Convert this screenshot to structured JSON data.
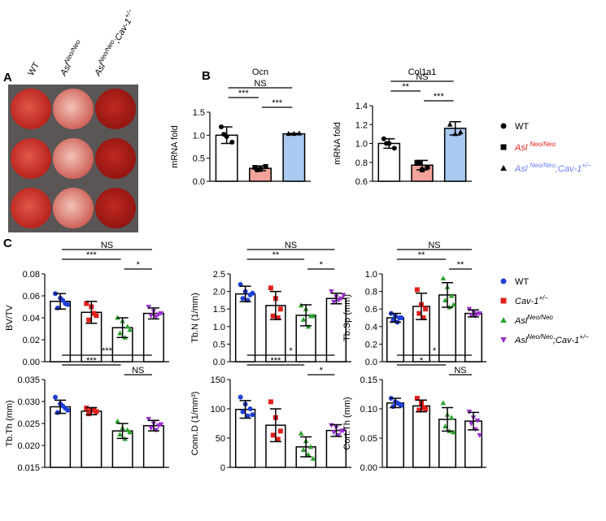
{
  "panel_labels": [
    "A",
    "B",
    "C"
  ],
  "panel_a": {
    "columns": [
      [
        {
          "text": "WT"
        }
      ],
      [
        {
          "text": "Asl"
        },
        {
          "text": "Neo/Neo",
          "sup": true
        }
      ],
      [
        {
          "text": "Asl"
        },
        {
          "text": "Neo/Neo",
          "sup": true
        },
        {
          "text": ";Cav-1"
        },
        {
          "text": "+/−",
          "sup": true
        }
      ]
    ]
  },
  "legend_b": [
    {
      "marker": "circle",
      "color": "#000000",
      "text_color": "#000000",
      "italic": false,
      "name": [
        {
          "text": "WT"
        }
      ]
    },
    {
      "marker": "square",
      "color": "#000000",
      "text_color": "#e8231e",
      "italic": true,
      "name": [
        {
          "text": "Asl "
        },
        {
          "text": "Neo/Neo",
          "sup": true
        }
      ]
    },
    {
      "marker": "triangle",
      "color": "#000000",
      "text_color": "#6a7df0",
      "italic": true,
      "name": [
        {
          "text": "Asl "
        },
        {
          "text": "Neo/Neo",
          "sup": true
        },
        {
          "text": ";Cav-1"
        },
        {
          "text": "+/−",
          "sup": true
        }
      ]
    }
  ],
  "legend_c": [
    {
      "marker": "circle",
      "color": "#1f3fd6",
      "text_color": "#000000",
      "italic": false,
      "name": [
        {
          "text": "WT"
        }
      ]
    },
    {
      "marker": "square",
      "color": "#e0201b",
      "text_color": "#000000",
      "italic": true,
      "name": [
        {
          "text": "Cav-1"
        },
        {
          "text": "+/−",
          "sup": true
        }
      ]
    },
    {
      "marker": "triangle",
      "color": "#2ca02c",
      "text_color": "#000000",
      "italic": true,
      "name": [
        {
          "text": "Asl"
        },
        {
          "text": "Neo/Neo",
          "sup": true
        }
      ]
    },
    {
      "marker": "triangle-down",
      "color": "#9b30d0",
      "text_color": "#000000",
      "italic": true,
      "name": [
        {
          "text": "Asl"
        },
        {
          "text": "Neo/Neo",
          "sup": true
        },
        {
          "text": ";Cav-1"
        },
        {
          "text": "+/−",
          "sup": true
        }
      ]
    }
  ],
  "chart_data": [
    {
      "type": "bar",
      "title": "Ocn",
      "ylabel": "mRNA fold",
      "ylim": [
        0,
        1.5
      ],
      "yticks": [
        {
          "value": 0,
          "label": "0.0"
        },
        0.5,
        {
          "value": 1,
          "label": "1.0"
        },
        1.5
      ],
      "series": [
        {
          "color": "#ffffff",
          "point_color": "#000000",
          "marker": "circle",
          "values": [
            1.0
          ],
          "errors": [
            0.18
          ],
          "points": [
            1.18,
            0.97,
            0.85,
            1.02
          ]
        },
        {
          "color": "#f4a39a",
          "point_color": "#000000",
          "marker": "square",
          "values": [
            0.28
          ],
          "errors": [
            0.05
          ],
          "points": [
            0.3,
            0.26,
            0.32,
            0.25
          ]
        },
        {
          "color": "#a9c9f0",
          "point_color": "#000000",
          "marker": "triangle",
          "values": [
            1.03
          ],
          "errors": [
            0.01
          ],
          "points": [
            1.03,
            1.03,
            1.04
          ]
        }
      ],
      "comparisons": [
        {
          "groups": [
            0,
            2
          ],
          "label": "NS"
        },
        {
          "groups": [
            0,
            1
          ],
          "label": "***"
        },
        {
          "groups": [
            1,
            2
          ],
          "label": "***"
        }
      ]
    },
    {
      "type": "bar",
      "title": "Col1a1",
      "ylabel": "mRNA fold",
      "ylim": [
        0.6,
        1.4
      ],
      "yticks": [
        0.6,
        0.8,
        {
          "value": 1,
          "label": "1.0"
        },
        1.2,
        1.4
      ],
      "series": [
        {
          "color": "#ffffff",
          "point_color": "#000000",
          "marker": "circle",
          "values": [
            1.0
          ],
          "errors": [
            0.05
          ],
          "points": [
            1.05,
            1.0,
            0.95,
            1.0
          ]
        },
        {
          "color": "#f4a39a",
          "point_color": "#000000",
          "marker": "square",
          "values": [
            0.77
          ],
          "errors": [
            0.05
          ],
          "points": [
            0.8,
            0.72,
            0.75,
            0.8
          ]
        },
        {
          "color": "#a9c9f0",
          "point_color": "#000000",
          "marker": "triangle",
          "values": [
            1.16
          ],
          "errors": [
            0.07
          ],
          "points": [
            1.2,
            1.1,
            1.12
          ]
        }
      ],
      "comparisons": [
        {
          "groups": [
            0,
            2
          ],
          "label": "NS"
        },
        {
          "groups": [
            0,
            1
          ],
          "label": "**"
        },
        {
          "groups": [
            1,
            2
          ],
          "label": "***"
        }
      ]
    },
    {
      "type": "bar",
      "ylabel": "BV/TV",
      "ylim": [
        0,
        0.08
      ],
      "yticks": [
        {
          "value": 0,
          "label": "0.00"
        },
        {
          "value": 0.02,
          "label": "0.02"
        },
        {
          "value": 0.04,
          "label": "0.04"
        },
        {
          "value": 0.06,
          "label": "0.06"
        },
        {
          "value": 0.08,
          "label": "0.08"
        }
      ],
      "series": [
        {
          "color": "#ffffff",
          "point_color": "#1f3fd6",
          "marker": "circle",
          "values": [
            0.055
          ],
          "errors": [
            0.007
          ],
          "points": [
            0.062,
            0.058,
            0.053,
            0.049,
            0.056,
            0.052
          ]
        },
        {
          "color": "#ffffff",
          "point_color": "#e0201b",
          "marker": "square",
          "values": [
            0.045
          ],
          "errors": [
            0.01
          ],
          "points": [
            0.053,
            0.05,
            0.042,
            0.038,
            0.044
          ]
        },
        {
          "color": "#ffffff",
          "point_color": "#2ca02c",
          "marker": "triangle",
          "values": [
            0.031
          ],
          "errors": [
            0.009
          ],
          "points": [
            0.04,
            0.037,
            0.032,
            0.026,
            0.022,
            0.029
          ]
        },
        {
          "color": "#ffffff",
          "point_color": "#9b30d0",
          "marker": "triangle-down",
          "values": [
            0.044
          ],
          "errors": [
            0.005
          ],
          "points": [
            0.05,
            0.046,
            0.043,
            0.042,
            0.041,
            0.044
          ]
        }
      ],
      "comparisons": [
        {
          "groups": [
            0,
            3
          ],
          "label": "NS"
        },
        {
          "groups": [
            0,
            2
          ],
          "label": "***"
        },
        {
          "groups": [
            2,
            3
          ],
          "label": "*"
        }
      ]
    },
    {
      "type": "bar",
      "ylabel": "Tb.N (1/mm)",
      "ylim": [
        0,
        2.5
      ],
      "yticks": [
        {
          "value": 0,
          "label": "0.0"
        },
        0.5,
        {
          "value": 1,
          "label": "1.0"
        },
        1.5,
        {
          "value": 2,
          "label": "2.0"
        },
        2.5
      ],
      "series": [
        {
          "color": "#ffffff",
          "point_color": "#1f3fd6",
          "marker": "circle",
          "values": [
            1.93
          ],
          "errors": [
            0.22
          ],
          "points": [
            2.2,
            2.0,
            1.9,
            1.8,
            1.75,
            1.95
          ]
        },
        {
          "color": "#ffffff",
          "point_color": "#e0201b",
          "marker": "square",
          "values": [
            1.6
          ],
          "errors": [
            0.4
          ],
          "points": [
            2.1,
            1.8,
            1.5,
            1.3,
            1.25
          ]
        },
        {
          "color": "#ffffff",
          "point_color": "#2ca02c",
          "marker": "triangle",
          "values": [
            1.32
          ],
          "errors": [
            0.3
          ],
          "points": [
            1.6,
            1.5,
            1.3,
            1.2,
            1.0,
            1.3
          ]
        },
        {
          "color": "#ffffff",
          "point_color": "#9b30d0",
          "marker": "triangle-down",
          "values": [
            1.8
          ],
          "errors": [
            0.15
          ],
          "points": [
            2.0,
            1.85,
            1.8,
            1.7,
            1.75,
            1.9
          ]
        }
      ],
      "comparisons": [
        {
          "groups": [
            0,
            3
          ],
          "label": "NS"
        },
        {
          "groups": [
            0,
            2
          ],
          "label": "**"
        },
        {
          "groups": [
            2,
            3
          ],
          "label": "*"
        }
      ]
    },
    {
      "type": "bar",
      "ylabel": "Tb.Sp (mm)",
      "ylim": [
        0,
        1
      ],
      "yticks": [
        {
          "value": 0,
          "label": "0.0"
        },
        0.2,
        0.4,
        0.6,
        0.8,
        {
          "value": 1,
          "label": "1.0"
        }
      ],
      "series": [
        {
          "color": "#ffffff",
          "point_color": "#1f3fd6",
          "marker": "circle",
          "values": [
            0.5
          ],
          "errors": [
            0.05
          ],
          "points": [
            0.55,
            0.52,
            0.5,
            0.47,
            0.45,
            0.5
          ]
        },
        {
          "color": "#ffffff",
          "point_color": "#e0201b",
          "marker": "square",
          "values": [
            0.63
          ],
          "errors": [
            0.15
          ],
          "points": [
            0.82,
            0.65,
            0.6,
            0.55,
            0.5
          ]
        },
        {
          "color": "#ffffff",
          "point_color": "#2ca02c",
          "marker": "triangle",
          "values": [
            0.76
          ],
          "errors": [
            0.14
          ],
          "points": [
            0.95,
            0.85,
            0.75,
            0.7,
            0.62,
            0.65
          ]
        },
        {
          "color": "#ffffff",
          "point_color": "#9b30d0",
          "marker": "triangle-down",
          "values": [
            0.55
          ],
          "errors": [
            0.04
          ],
          "points": [
            0.6,
            0.57,
            0.55,
            0.53,
            0.52,
            0.55
          ]
        }
      ],
      "comparisons": [
        {
          "groups": [
            0,
            3
          ],
          "label": "NS"
        },
        {
          "groups": [
            0,
            2
          ],
          "label": "**"
        },
        {
          "groups": [
            2,
            3
          ],
          "label": "**"
        }
      ]
    },
    {
      "type": "bar",
      "ylabel": "Tb.Th (mm)",
      "ylim": [
        0.015,
        0.035
      ],
      "yticks": [
        0.015,
        {
          "value": 0.02,
          "label": "0.020"
        },
        0.025,
        {
          "value": 0.03,
          "label": "0.030"
        },
        0.035
      ],
      "series": [
        {
          "color": "#ffffff",
          "point_color": "#1f3fd6",
          "marker": "circle",
          "values": [
            0.0288
          ],
          "errors": [
            0.0015
          ],
          "points": [
            0.031,
            0.0295,
            0.0285,
            0.0275,
            0.029,
            0.028
          ]
        },
        {
          "color": "#ffffff",
          "point_color": "#e0201b",
          "marker": "square",
          "values": [
            0.0278
          ],
          "errors": [
            0.0008
          ],
          "points": [
            0.0285,
            0.028,
            0.0277,
            0.0272,
            0.0282
          ]
        },
        {
          "color": "#ffffff",
          "point_color": "#2ca02c",
          "marker": "triangle",
          "values": [
            0.0233
          ],
          "errors": [
            0.0017
          ],
          "points": [
            0.0255,
            0.024,
            0.0235,
            0.0225,
            0.0215,
            0.023
          ]
        },
        {
          "color": "#ffffff",
          "point_color": "#9b30d0",
          "marker": "triangle-down",
          "values": [
            0.0245
          ],
          "errors": [
            0.0012
          ],
          "points": [
            0.026,
            0.025,
            0.0245,
            0.024,
            0.0235,
            0.0248
          ]
        }
      ],
      "comparisons": [
        {
          "groups": [
            0,
            3
          ],
          "label": "***"
        },
        {
          "groups": [
            0,
            2
          ],
          "label": "***"
        },
        {
          "groups": [
            2,
            3
          ],
          "label": "NS"
        }
      ]
    },
    {
      "type": "bar",
      "ylabel": "Conn.D (1/mm³)",
      "ylim": [
        0,
        150
      ],
      "yticks": [
        0,
        50,
        100,
        150
      ],
      "series": [
        {
          "color": "#ffffff",
          "point_color": "#1f3fd6",
          "marker": "circle",
          "values": [
            99
          ],
          "errors": [
            15
          ],
          "points": [
            120,
            108,
            100,
            95,
            88,
            90
          ]
        },
        {
          "color": "#ffffff",
          "point_color": "#e0201b",
          "marker": "square",
          "values": [
            72
          ],
          "errors": [
            28
          ],
          "points": [
            112,
            85,
            62,
            55,
            48
          ]
        },
        {
          "color": "#ffffff",
          "point_color": "#2ca02c",
          "marker": "triangle",
          "values": [
            35
          ],
          "errors": [
            17
          ],
          "points": [
            58,
            45,
            35,
            30,
            22,
            15
          ]
        },
        {
          "color": "#ffffff",
          "point_color": "#9b30d0",
          "marker": "triangle-down",
          "values": [
            63
          ],
          "errors": [
            10
          ],
          "points": [
            72,
            68,
            62,
            60,
            55,
            63
          ]
        }
      ],
      "comparisons": [
        {
          "groups": [
            0,
            3
          ],
          "label": "*"
        },
        {
          "groups": [
            0,
            2
          ],
          "label": "***"
        },
        {
          "groups": [
            2,
            3
          ],
          "label": "*"
        }
      ]
    },
    {
      "type": "bar",
      "ylabel": "Cort.Th (mm)",
      "ylim": [
        0,
        0.15
      ],
      "yticks": [
        {
          "value": 0,
          "label": "0.00"
        },
        0.05,
        {
          "value": 0.1,
          "label": "0.10"
        },
        0.15
      ],
      "series": [
        {
          "color": "#ffffff",
          "point_color": "#1f3fd6",
          "marker": "circle",
          "values": [
            0.11
          ],
          "errors": [
            0.008
          ],
          "points": [
            0.118,
            0.112,
            0.108,
            0.104,
            0.11,
            0.106
          ]
        },
        {
          "color": "#ffffff",
          "point_color": "#e0201b",
          "marker": "square",
          "values": [
            0.105
          ],
          "errors": [
            0.01
          ],
          "points": [
            0.118,
            0.11,
            0.1,
            0.098,
            0.102
          ]
        },
        {
          "color": "#ffffff",
          "point_color": "#2ca02c",
          "marker": "triangle",
          "values": [
            0.082
          ],
          "errors": [
            0.02
          ],
          "points": [
            0.11,
            0.09,
            0.085,
            0.07,
            0.062,
            0.06
          ]
        },
        {
          "color": "#ffffff",
          "point_color": "#9b30d0",
          "marker": "triangle-down",
          "values": [
            0.079
          ],
          "errors": [
            0.015
          ],
          "points": [
            0.095,
            0.085,
            0.08,
            0.075,
            0.065,
            0.055
          ]
        }
      ],
      "comparisons": [
        {
          "groups": [
            0,
            3
          ],
          "label": "*"
        },
        {
          "groups": [
            0,
            2
          ],
          "label": "*"
        },
        {
          "groups": [
            2,
            3
          ],
          "label": "NS"
        }
      ]
    }
  ]
}
